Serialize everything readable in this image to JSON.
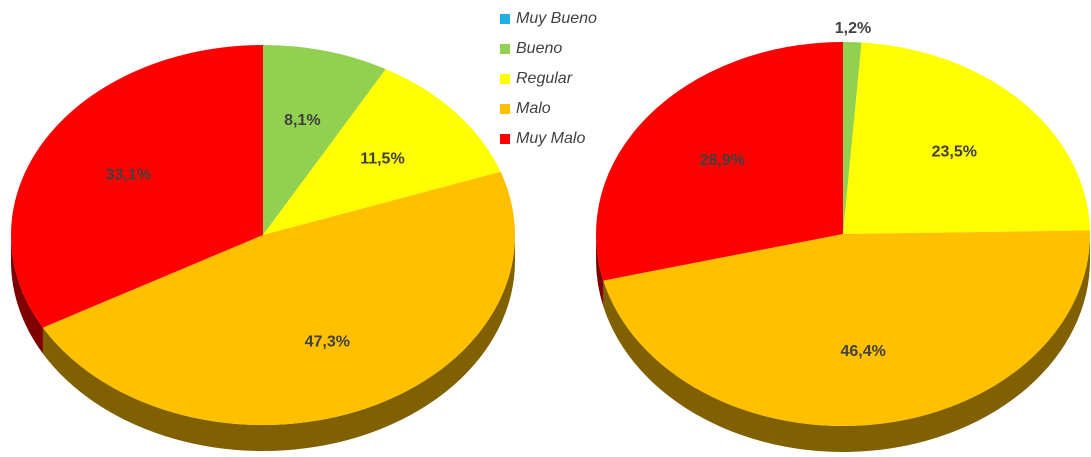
{
  "chart_data": [
    {
      "type": "pie",
      "categories": [
        "Muy Bueno",
        "Bueno",
        "Regular",
        "Malo",
        "Muy Malo"
      ],
      "colors": [
        "#1fb1e6",
        "#92d050",
        "#ffff00",
        "#ffc000",
        "#ff0000"
      ],
      "values": [
        0,
        8.1,
        11.5,
        47.3,
        33.1
      ],
      "value_labels": [
        null,
        "8,1%",
        "11,5%",
        "47,3%",
        "33,1%"
      ]
    },
    {
      "type": "pie",
      "values": [
        0,
        1.2,
        23.5,
        46.4,
        28.9
      ],
      "value_labels": [
        null,
        "1,2%",
        "23,5%",
        "46,4%",
        "28,9%"
      ]
    }
  ]
}
